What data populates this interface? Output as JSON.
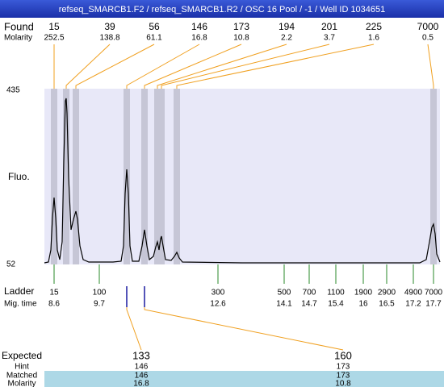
{
  "header": {
    "title": "refseq_SMARCB1.F2 / refseq_SMARCB1.R2 / OSC 16 Pool / -1 / Well ID 1034651"
  },
  "found": {
    "label": "Found",
    "molarity_label": "Molarity",
    "peaks": [
      {
        "size": "15",
        "molarity": "252.5"
      },
      {
        "size": "39",
        "molarity": "138.8"
      },
      {
        "size": "56",
        "molarity": "61.1"
      },
      {
        "size": "146",
        "molarity": "16.8"
      },
      {
        "size": "173",
        "molarity": "10.8"
      },
      {
        "size": "194",
        "molarity": "2.2"
      },
      {
        "size": "201",
        "molarity": "3.7"
      },
      {
        "size": "225",
        "molarity": "1.6"
      },
      {
        "size": "7000",
        "molarity": "0.5"
      }
    ]
  },
  "axis": {
    "label": "Fluo.",
    "top": "435",
    "bottom": "52"
  },
  "ladder": {
    "label": "Ladder",
    "time_label": "Mig. time",
    "bands": [
      {
        "size": "15",
        "time": "8.6"
      },
      {
        "size": "100",
        "time": "9.7"
      },
      {
        "size": "300",
        "time": "12.6"
      },
      {
        "size": "500",
        "time": "14.1"
      },
      {
        "size": "700",
        "time": "14.7"
      },
      {
        "size": "1100",
        "time": "15.4"
      },
      {
        "size": "1900",
        "time": "16"
      },
      {
        "size": "2900",
        "time": "16.5"
      },
      {
        "size": "4900",
        "time": "17.2"
      },
      {
        "size": "7000",
        "time": "17.7"
      }
    ]
  },
  "expected": {
    "labels": {
      "expected": "Expected",
      "hint": "Hint",
      "matched": "Matched",
      "molarity": "Molarity"
    },
    "columns": [
      {
        "expected": "133",
        "hint": "146",
        "matched": "146",
        "molarity": "16.8"
      },
      {
        "expected": "160",
        "hint": "173",
        "matched": "173",
        "molarity": "10.8"
      }
    ]
  }
}
